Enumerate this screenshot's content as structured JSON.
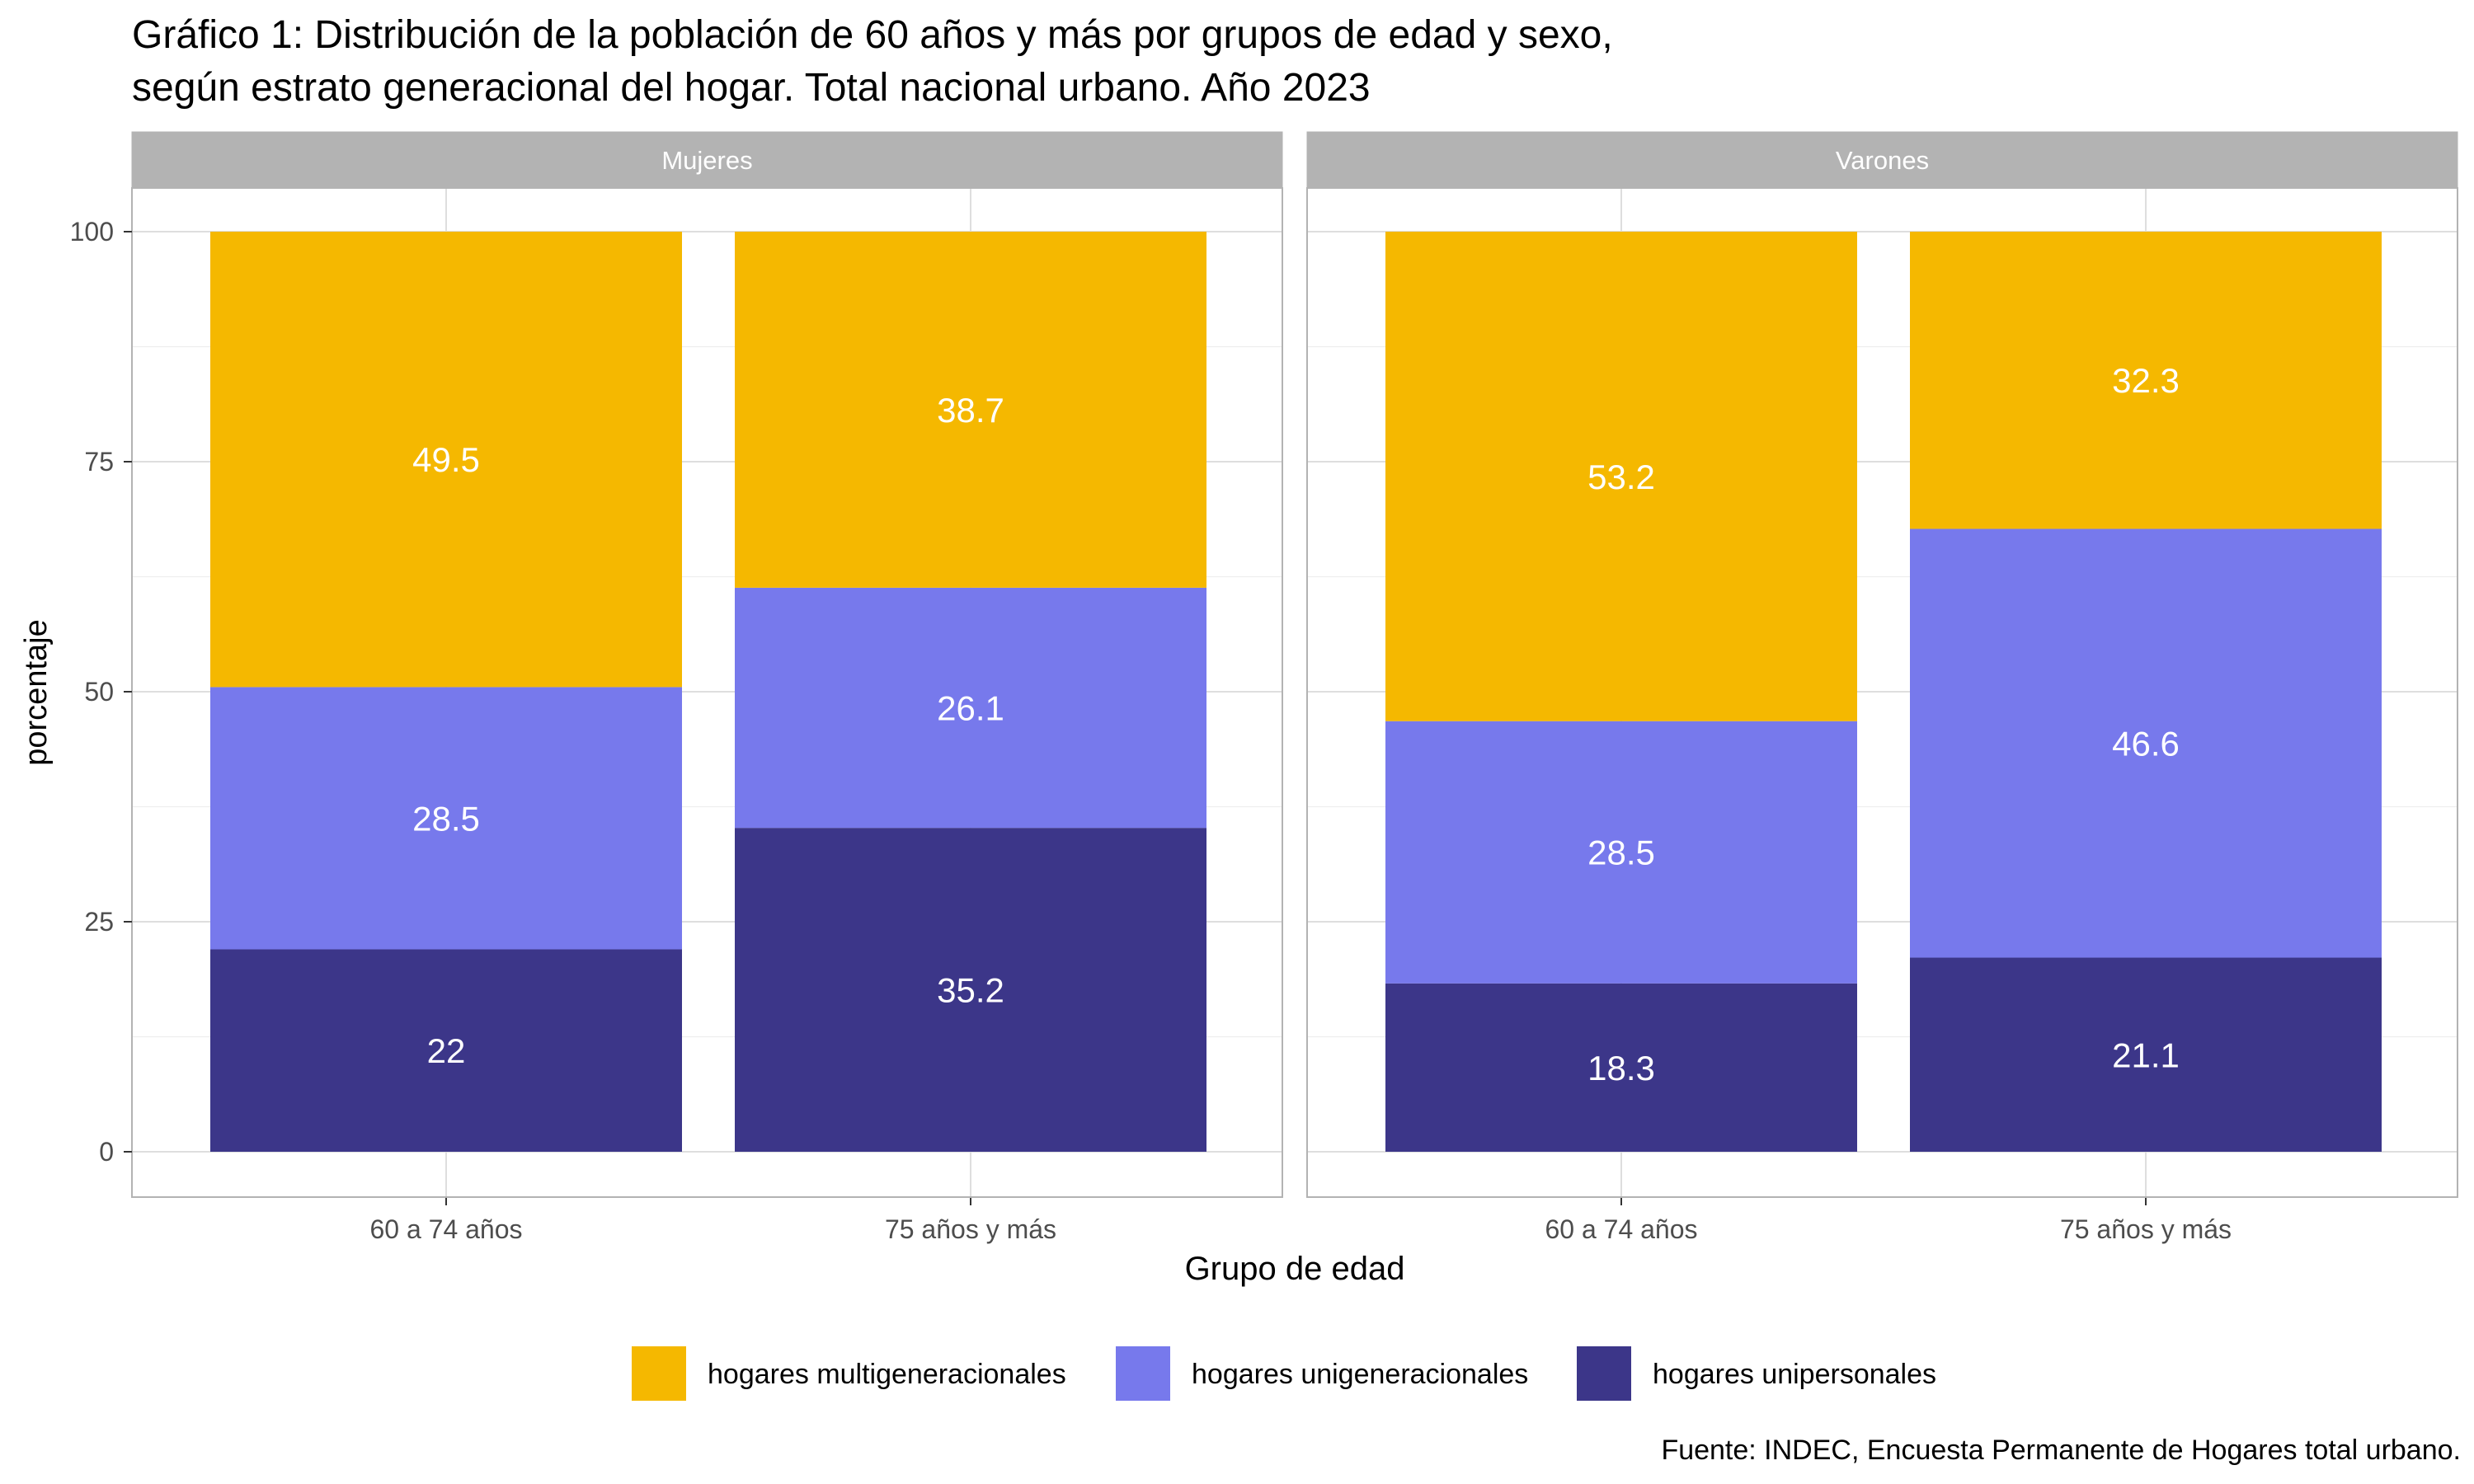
{
  "chart_data": {
    "type": "bar",
    "stacked": true,
    "title_line1": "Gráfico 1: Distribución de la población de 60 años y más por grupos de edad y sexo,",
    "title_line2": "según estrato generacional del hogar. Total nacional urbano. Año 2023",
    "xlabel": "Grupo de edad",
    "ylabel": "porcentaje",
    "ylim": [
      0,
      100
    ],
    "yticks": [
      "0",
      "25",
      "50",
      "75",
      "100"
    ],
    "categories": [
      "60 a 74 años",
      "75 años y más"
    ],
    "grid": true,
    "legend_position": "bottom",
    "source": "Fuente: INDEC, Encuesta Permanente de Hogares total urbano.",
    "series": [
      {
        "name": "hogares multigeneracionales",
        "color": "#F5B800"
      },
      {
        "name": "hogares unigeneracionales",
        "color": "#7779EC"
      },
      {
        "name": "hogares unipersonales",
        "color": "#3C3689"
      }
    ],
    "panels": [
      {
        "name": "Mujeres",
        "bars": [
          {
            "category": "60 a 74 años",
            "values": [
              49.5,
              28.5,
              22
            ],
            "labels": [
              "49.5",
              "28.5",
              "22"
            ]
          },
          {
            "category": "75 años y más",
            "values": [
              38.7,
              26.1,
              35.2
            ],
            "labels": [
              "38.7",
              "26.1",
              "35.2"
            ]
          }
        ]
      },
      {
        "name": "Varones",
        "bars": [
          {
            "category": "60 a 74 años",
            "values": [
              53.2,
              28.5,
              18.3
            ],
            "labels": [
              "53.2",
              "28.5",
              "18.3"
            ]
          },
          {
            "category": "75 años y más",
            "values": [
              32.3,
              46.6,
              21.1
            ],
            "labels": [
              "32.3",
              "46.6",
              "21.1"
            ]
          }
        ]
      }
    ]
  }
}
